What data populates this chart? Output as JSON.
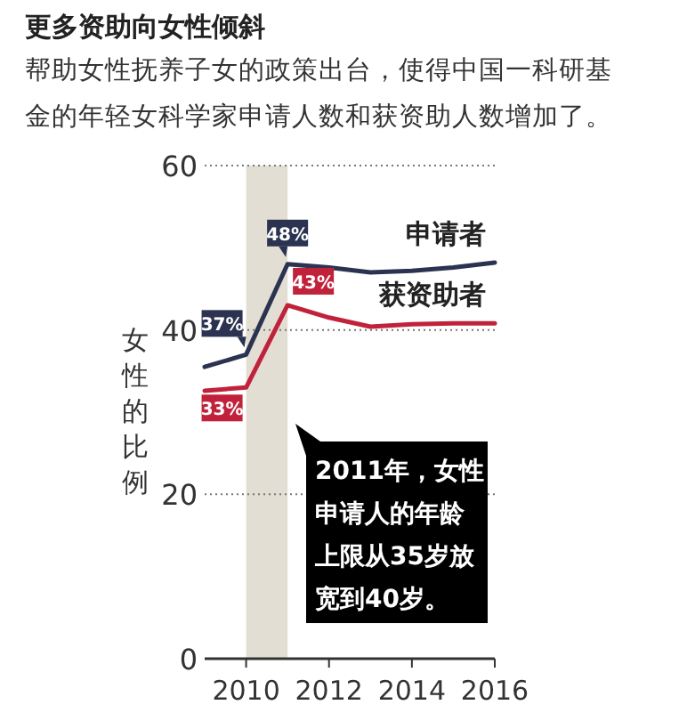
{
  "chart_data": {
    "type": "line",
    "title": "更多资助向女性倾斜",
    "subtitle": "帮助女性抚养子女的政策出台，使得中国一科研基金的年轻女科学家申请人数和获资助人数增加了。",
    "ylabel": "女性的比例",
    "x": [
      2009,
      2010,
      2011,
      2012,
      2013,
      2014,
      2015,
      2016
    ],
    "series": [
      {
        "name": "申请者",
        "color": "#2b3350",
        "values": [
          35.5,
          37,
          48,
          47.6,
          47.0,
          47.2,
          47.6,
          48.2
        ],
        "value_labels": [
          null,
          "37%",
          "48%",
          null,
          null,
          null,
          null,
          null
        ]
      },
      {
        "name": "获资助者",
        "color": "#c0223b",
        "values": [
          32.6,
          33,
          43,
          41.5,
          40.4,
          40.7,
          40.8,
          40.8
        ],
        "value_labels": [
          null,
          "33%",
          "43%",
          null,
          null,
          null,
          null,
          null
        ]
      }
    ],
    "bands": [
      {
        "axis": "x",
        "from": 2010,
        "to": 2011,
        "color": "#e2ded3"
      }
    ],
    "annotations": [
      "2011年，女性申请人的年龄上限从35岁放宽到40岁。"
    ],
    "xlim": [
      2009,
      2016
    ],
    "xticks": [
      2010,
      2012,
      2014,
      2016
    ],
    "ylim": [
      0,
      60
    ],
    "yticks": [
      0,
      20,
      40,
      60
    ],
    "grid": "y"
  }
}
